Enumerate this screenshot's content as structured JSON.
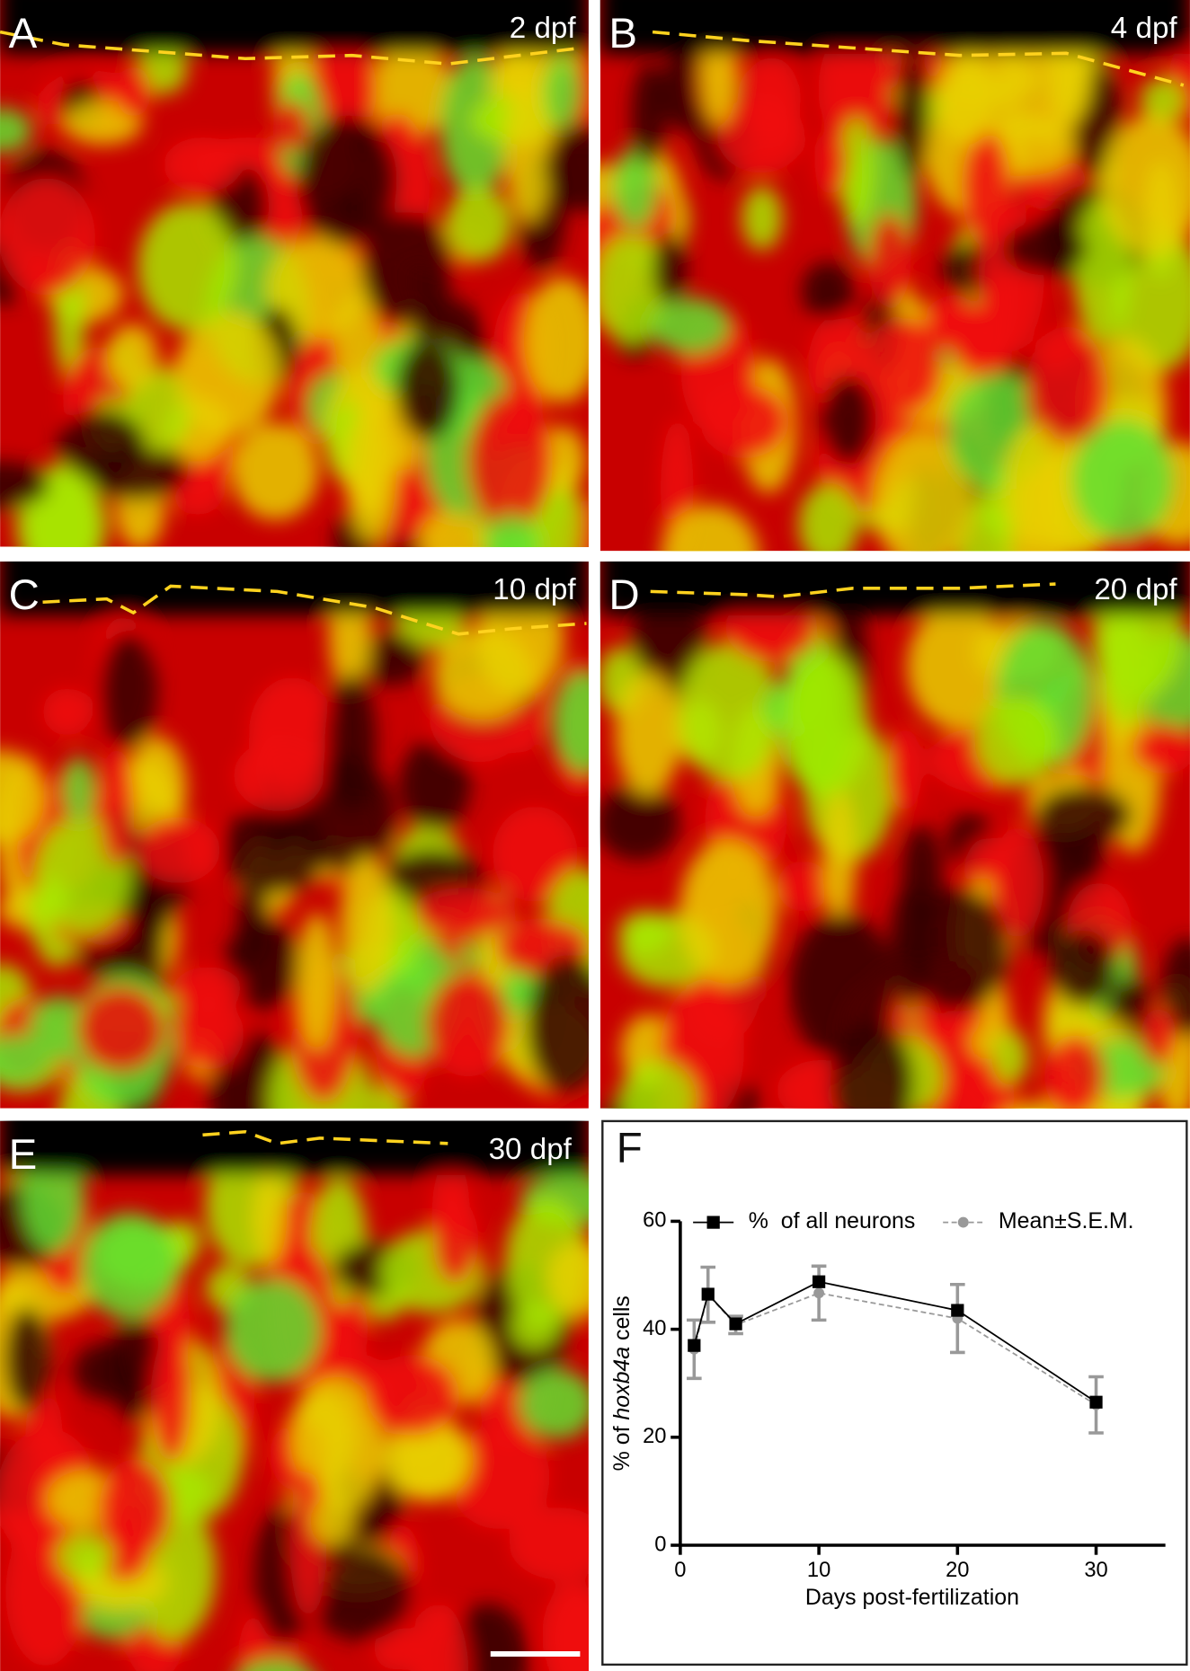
{
  "panels": [
    {
      "letter": "A",
      "stage": "2 dpf"
    },
    {
      "letter": "B",
      "stage": "4 dpf"
    },
    {
      "letter": "C",
      "stage": "10 dpf"
    },
    {
      "letter": "D",
      "stage": "20 dpf"
    },
    {
      "letter": "E",
      "stage": "30 dpf"
    }
  ],
  "chart_data": {
    "type": "line",
    "panel": "F",
    "x_label": "Days post-fertilization",
    "y_label_parts": [
      "% of ",
      "hoxb4a",
      " cells"
    ],
    "x": [
      1,
      2,
      4,
      10,
      20,
      30
    ],
    "series": [
      {
        "name": "%  of all neurons",
        "color": "#000000",
        "line_style": "solid",
        "marker": "square",
        "values": [
          37,
          46.5,
          41,
          48.8,
          43.5,
          26.5
        ]
      },
      {
        "name": "Mean±S.E.M.",
        "color": "#999999",
        "line_style": "dashed",
        "marker": "circle",
        "values": [
          36.3,
          46.4,
          40.8,
          46.7,
          42,
          26
        ],
        "errors": [
          5.4,
          5.1,
          1.6,
          5,
          6.3,
          5.2
        ]
      }
    ],
    "xlim": [
      0,
      35
    ],
    "xticks": [
      0,
      10,
      20,
      30
    ],
    "ylim": [
      0,
      60
    ],
    "yticks": [
      0,
      20,
      40,
      60
    ],
    "legend": "top",
    "grid": false
  }
}
